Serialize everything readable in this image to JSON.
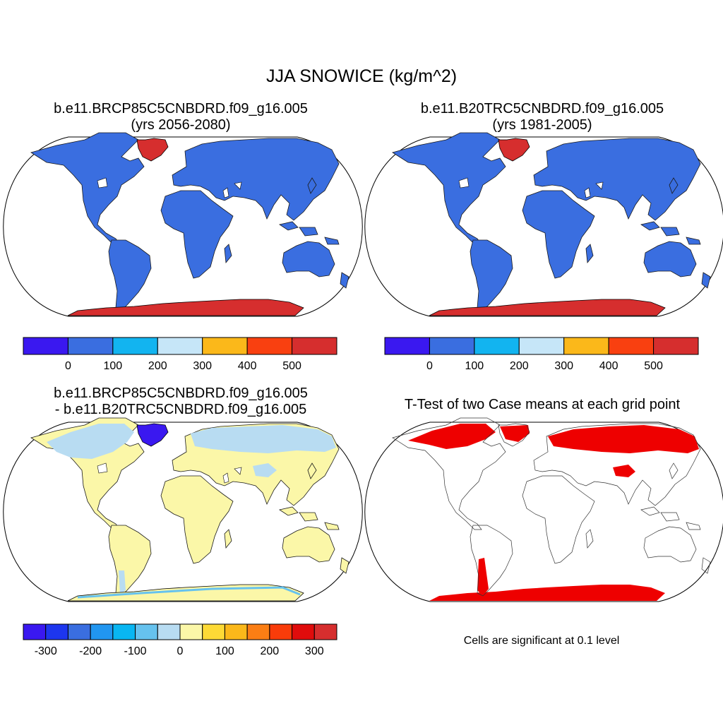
{
  "title": "JJA SNOWICE (kg/m^2)",
  "panels": [
    {
      "title_line1": "b.e11.BRCP85C5CNBDRD.f09_g16.005",
      "title_line2": "(yrs 2056-2080)",
      "fill": "abs"
    },
    {
      "title_line1": "b.e11.B20TRC5CNBDRD.f09_g16.005",
      "title_line2": "(yrs 1981-2005)",
      "fill": "abs"
    },
    {
      "title_line1": "b.e11.BRCP85C5CNBDRD.f09_g16.005",
      "title_line2": "- b.e11.B20TRC5CNBDRD.f09_g16.005",
      "fill": "diff"
    },
    {
      "title_line1": "T-Test of two Case means at each grid point",
      "title_line2": "",
      "fill": "ttest"
    }
  ],
  "colorbar_abs": {
    "colors": [
      "#3a18f0",
      "#3a6ee0",
      "#12b4f0",
      "#c6e6f8",
      "#fbb81a",
      "#f94010",
      "#d62e2e"
    ],
    "tick_labels": [
      "0",
      "100",
      "200",
      "300",
      "400",
      "500"
    ]
  },
  "colorbar_diff": {
    "colors": [
      "#3a18f0",
      "#1d36ee",
      "#3a6ee0",
      "#2196f0",
      "#09b6f2",
      "#66c2ee",
      "#b8dcf2",
      "#fbf7a8",
      "#fdda36",
      "#fbb81a",
      "#fb7e14",
      "#f93c0a",
      "#e00c0c",
      "#d62e2e"
    ],
    "tick_labels": [
      "-300",
      "-200",
      "-100",
      "0",
      "100",
      "200",
      "300"
    ]
  },
  "ttest_note": "Cells are significant at 0.1 level",
  "colors": {
    "land_abs": "#3a6ee0",
    "ice_abs": "#d62e2e",
    "land_diff": "#fbf7a8",
    "snow_diff": "#b8dcf2",
    "loss_diff": "#3a18f0",
    "signif": "#ee0000"
  }
}
